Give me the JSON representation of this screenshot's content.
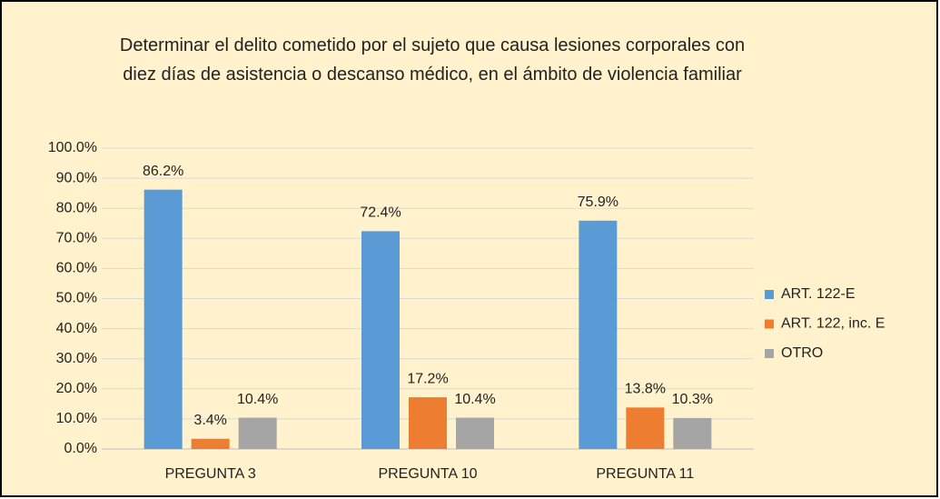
{
  "chart_data": {
    "type": "bar",
    "title": "Determinar el delito cometido por el sujeto que causa lesiones corporales con diez días de asistencia o descanso médico, en el ámbito de violencia familiar",
    "categories": [
      "PREGUNTA 3",
      "PREGUNTA 10",
      "PREGUNTA 11"
    ],
    "series": [
      {
        "name": "ART. 122-E",
        "color": "#5b9bd5",
        "values": [
          86.2,
          72.4,
          75.9
        ],
        "value_labels": [
          "86.2%",
          "72.4%",
          "75.9%"
        ]
      },
      {
        "name": "ART. 122, inc. E",
        "color": "#ed7d31",
        "values": [
          3.4,
          17.2,
          13.8
        ],
        "value_labels": [
          "3.4%",
          "17.2%",
          "13.8%"
        ]
      },
      {
        "name": "OTRO",
        "color": "#a5a5a5",
        "values": [
          10.4,
          10.4,
          10.3
        ],
        "value_labels": [
          "10.4%",
          "10.4%",
          "10.3%"
        ]
      }
    ],
    "ylim": [
      0,
      100
    ],
    "yticks": [
      {
        "value": 0,
        "label": "0.0%"
      },
      {
        "value": 10,
        "label": "10.0%"
      },
      {
        "value": 20,
        "label": "20.0%"
      },
      {
        "value": 30,
        "label": "30.0%"
      },
      {
        "value": 40,
        "label": "40.0%"
      },
      {
        "value": 50,
        "label": "50.0%"
      },
      {
        "value": 60,
        "label": "60.0%"
      },
      {
        "value": 70,
        "label": "70.0%"
      },
      {
        "value": 80,
        "label": "80.0%"
      },
      {
        "value": 90,
        "label": "90.0%"
      },
      {
        "value": 100,
        "label": "100.0%"
      }
    ],
    "grid": true,
    "legend": "right"
  }
}
